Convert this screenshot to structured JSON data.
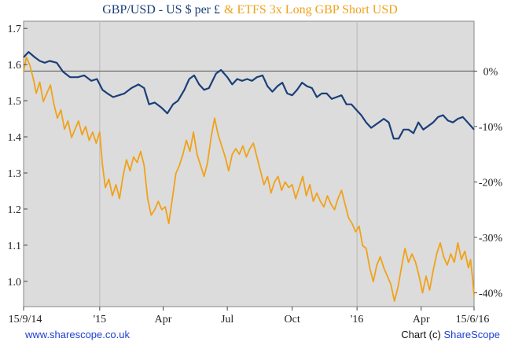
{
  "chart_data": {
    "type": "line",
    "title_parts": [
      "GBP/USD - US $ per £",
      "& ETFS 3x Long GBP Short USD"
    ],
    "title_colors": [
      "#1a3f78",
      "#f0a21a"
    ],
    "background": "#dcdcdc",
    "grid": true,
    "x_ticks": [
      "15/9/14",
      "'15",
      "Apr",
      "Jul",
      "Oct",
      "'16",
      "Apr",
      "15/6/16"
    ],
    "x_range": [
      "2014-09-15",
      "2016-06-15"
    ],
    "x_tick_dates": [
      "2014-09-15",
      "2015-01-01",
      "2015-04-01",
      "2015-07-01",
      "2015-10-01",
      "2016-01-01",
      "2016-04-01",
      "2016-06-15"
    ],
    "vgrid_dates": [
      "2015-01-01",
      "2016-01-01"
    ],
    "left_axis": {
      "ticks": [
        "1.7",
        "1.6",
        "1.5",
        "1.4",
        "1.3",
        "1.2",
        "1.1",
        "1.0"
      ],
      "range": [
        0.93,
        1.72
      ]
    },
    "right_axis": {
      "ticks": [
        "0%",
        "-10%",
        "-20%",
        "-30%",
        "-40%"
      ],
      "range": [
        -42.5,
        9.0
      ]
    },
    "reference_line": 0,
    "series": [
      {
        "name": "GBP/USD - US $ per £",
        "color": "#1a3f78",
        "axis": "left",
        "points": [
          [
            "2014-09-15",
            1.62
          ],
          [
            "2014-09-22",
            1.635
          ],
          [
            "2014-10-01",
            1.62
          ],
          [
            "2014-10-08",
            1.61
          ],
          [
            "2014-10-15",
            1.605
          ],
          [
            "2014-10-22",
            1.61
          ],
          [
            "2014-11-01",
            1.605
          ],
          [
            "2014-11-10",
            1.58
          ],
          [
            "2014-11-20",
            1.565
          ],
          [
            "2014-12-01",
            1.565
          ],
          [
            "2014-12-10",
            1.57
          ],
          [
            "2014-12-20",
            1.555
          ],
          [
            "2014-12-28",
            1.56
          ],
          [
            "2015-01-05",
            1.53
          ],
          [
            "2015-01-12",
            1.52
          ],
          [
            "2015-01-20",
            1.51
          ],
          [
            "2015-01-28",
            1.515
          ],
          [
            "2015-02-05",
            1.52
          ],
          [
            "2015-02-15",
            1.535
          ],
          [
            "2015-02-25",
            1.545
          ],
          [
            "2015-03-05",
            1.535
          ],
          [
            "2015-03-12",
            1.49
          ],
          [
            "2015-03-20",
            1.495
          ],
          [
            "2015-03-30",
            1.48
          ],
          [
            "2015-04-07",
            1.465
          ],
          [
            "2015-04-15",
            1.49
          ],
          [
            "2015-04-22",
            1.5
          ],
          [
            "2015-05-01",
            1.53
          ],
          [
            "2015-05-08",
            1.56
          ],
          [
            "2015-05-15",
            1.57
          ],
          [
            "2015-05-22",
            1.545
          ],
          [
            "2015-05-29",
            1.53
          ],
          [
            "2015-06-05",
            1.535
          ],
          [
            "2015-06-15",
            1.575
          ],
          [
            "2015-06-22",
            1.585
          ],
          [
            "2015-07-01",
            1.565
          ],
          [
            "2015-07-08",
            1.545
          ],
          [
            "2015-07-15",
            1.56
          ],
          [
            "2015-07-22",
            1.555
          ],
          [
            "2015-07-29",
            1.56
          ],
          [
            "2015-08-05",
            1.555
          ],
          [
            "2015-08-12",
            1.565
          ],
          [
            "2015-08-20",
            1.57
          ],
          [
            "2015-08-27",
            1.54
          ],
          [
            "2015-09-03",
            1.525
          ],
          [
            "2015-09-10",
            1.54
          ],
          [
            "2015-09-17",
            1.55
          ],
          [
            "2015-09-24",
            1.52
          ],
          [
            "2015-10-01",
            1.515
          ],
          [
            "2015-10-08",
            1.53
          ],
          [
            "2015-10-15",
            1.55
          ],
          [
            "2015-10-22",
            1.54
          ],
          [
            "2015-10-29",
            1.535
          ],
          [
            "2015-11-05",
            1.51
          ],
          [
            "2015-11-12",
            1.52
          ],
          [
            "2015-11-19",
            1.52
          ],
          [
            "2015-11-26",
            1.505
          ],
          [
            "2015-12-03",
            1.51
          ],
          [
            "2015-12-10",
            1.515
          ],
          [
            "2015-12-17",
            1.49
          ],
          [
            "2015-12-24",
            1.49
          ],
          [
            "2015-12-31",
            1.475
          ],
          [
            "2016-01-07",
            1.46
          ],
          [
            "2016-01-14",
            1.44
          ],
          [
            "2016-01-21",
            1.425
          ],
          [
            "2016-02-01",
            1.44
          ],
          [
            "2016-02-08",
            1.45
          ],
          [
            "2016-02-15",
            1.44
          ],
          [
            "2016-02-22",
            1.395
          ],
          [
            "2016-02-29",
            1.395
          ],
          [
            "2016-03-07",
            1.42
          ],
          [
            "2016-03-14",
            1.42
          ],
          [
            "2016-03-21",
            1.41
          ],
          [
            "2016-03-28",
            1.44
          ],
          [
            "2016-04-04",
            1.42
          ],
          [
            "2016-04-11",
            1.43
          ],
          [
            "2016-04-18",
            1.44
          ],
          [
            "2016-04-25",
            1.455
          ],
          [
            "2016-05-02",
            1.46
          ],
          [
            "2016-05-09",
            1.445
          ],
          [
            "2016-05-16",
            1.44
          ],
          [
            "2016-05-23",
            1.45
          ],
          [
            "2016-05-30",
            1.455
          ],
          [
            "2016-06-06",
            1.44
          ],
          [
            "2016-06-15",
            1.42
          ]
        ]
      },
      {
        "name": "& ETFS 3x Long GBP Short USD",
        "color": "#f0a21a",
        "axis": "right",
        "points": [
          [
            "2014-09-15",
            0.0
          ],
          [
            "2014-09-19",
            2.5
          ],
          [
            "2014-09-24",
            1.0
          ],
          [
            "2014-09-29",
            -1.5
          ],
          [
            "2014-10-03",
            -4.0
          ],
          [
            "2014-10-08",
            -2.0
          ],
          [
            "2014-10-13",
            -5.5
          ],
          [
            "2014-10-18",
            -4.0
          ],
          [
            "2014-10-23",
            -2.5
          ],
          [
            "2014-10-28",
            -6.0
          ],
          [
            "2014-11-02",
            -8.5
          ],
          [
            "2014-11-07",
            -7.0
          ],
          [
            "2014-11-12",
            -10.5
          ],
          [
            "2014-11-17",
            -9.0
          ],
          [
            "2014-11-22",
            -12.0
          ],
          [
            "2014-11-27",
            -10.5
          ],
          [
            "2014-12-02",
            -9.0
          ],
          [
            "2014-12-07",
            -11.5
          ],
          [
            "2014-12-12",
            -10.0
          ],
          [
            "2014-12-17",
            -12.5
          ],
          [
            "2014-12-22",
            -11.0
          ],
          [
            "2014-12-27",
            -13.0
          ],
          [
            "2015-01-01",
            -11.0
          ],
          [
            "2015-01-05",
            -17.0
          ],
          [
            "2015-01-09",
            -21.0
          ],
          [
            "2015-01-14",
            -19.5
          ],
          [
            "2015-01-19",
            -22.5
          ],
          [
            "2015-01-24",
            -20.5
          ],
          [
            "2015-01-29",
            -23.0
          ],
          [
            "2015-02-03",
            -19.0
          ],
          [
            "2015-02-08",
            -16.0
          ],
          [
            "2015-02-13",
            -18.0
          ],
          [
            "2015-02-18",
            -15.5
          ],
          [
            "2015-02-23",
            -16.5
          ],
          [
            "2015-02-28",
            -14.5
          ],
          [
            "2015-03-05",
            -17.0
          ],
          [
            "2015-03-10",
            -23.0
          ],
          [
            "2015-03-15",
            -26.0
          ],
          [
            "2015-03-20",
            -25.0
          ],
          [
            "2015-03-25",
            -23.5
          ],
          [
            "2015-03-30",
            -25.0
          ],
          [
            "2015-04-04",
            -24.5
          ],
          [
            "2015-04-09",
            -27.5
          ],
          [
            "2015-04-14",
            -23.0
          ],
          [
            "2015-04-19",
            -18.5
          ],
          [
            "2015-04-24",
            -17.0
          ],
          [
            "2015-04-29",
            -15.0
          ],
          [
            "2015-05-04",
            -12.5
          ],
          [
            "2015-05-09",
            -14.5
          ],
          [
            "2015-05-14",
            -11.0
          ],
          [
            "2015-05-19",
            -15.0
          ],
          [
            "2015-05-24",
            -17.0
          ],
          [
            "2015-05-29",
            -19.0
          ],
          [
            "2015-06-03",
            -16.5
          ],
          [
            "2015-06-08",
            -12.0
          ],
          [
            "2015-06-13",
            -8.5
          ],
          [
            "2015-06-18",
            -11.5
          ],
          [
            "2015-06-23",
            -13.5
          ],
          [
            "2015-06-28",
            -15.5
          ],
          [
            "2015-07-03",
            -18.0
          ],
          [
            "2015-07-08",
            -15.0
          ],
          [
            "2015-07-13",
            -14.0
          ],
          [
            "2015-07-18",
            -15.0
          ],
          [
            "2015-07-23",
            -13.5
          ],
          [
            "2015-07-28",
            -15.5
          ],
          [
            "2015-08-02",
            -14.0
          ],
          [
            "2015-08-07",
            -13.0
          ],
          [
            "2015-08-12",
            -15.5
          ],
          [
            "2015-08-17",
            -18.0
          ],
          [
            "2015-08-22",
            -20.5
          ],
          [
            "2015-08-27",
            -19.0
          ],
          [
            "2015-09-01",
            -22.0
          ],
          [
            "2015-09-06",
            -20.0
          ],
          [
            "2015-09-11",
            -19.0
          ],
          [
            "2015-09-16",
            -21.5
          ],
          [
            "2015-09-21",
            -20.0
          ],
          [
            "2015-09-26",
            -21.0
          ],
          [
            "2015-10-01",
            -20.5
          ],
          [
            "2015-10-06",
            -23.0
          ],
          [
            "2015-10-11",
            -21.0
          ],
          [
            "2015-10-16",
            -19.0
          ],
          [
            "2015-10-21",
            -22.5
          ],
          [
            "2015-10-26",
            -20.5
          ],
          [
            "2015-10-31",
            -23.5
          ],
          [
            "2015-11-05",
            -22.0
          ],
          [
            "2015-11-10",
            -23.5
          ],
          [
            "2015-11-15",
            -24.5
          ],
          [
            "2015-11-20",
            -22.5
          ],
          [
            "2015-11-25",
            -24.0
          ],
          [
            "2015-11-30",
            -25.0
          ],
          [
            "2015-12-05",
            -23.0
          ],
          [
            "2015-12-10",
            -21.5
          ],
          [
            "2015-12-15",
            -24.0
          ],
          [
            "2015-12-20",
            -26.5
          ],
          [
            "2015-12-25",
            -27.5
          ],
          [
            "2015-12-30",
            -29.0
          ],
          [
            "2016-01-04",
            -28.0
          ],
          [
            "2016-01-09",
            -31.5
          ],
          [
            "2016-01-14",
            -32.0
          ],
          [
            "2016-01-19",
            -35.5
          ],
          [
            "2016-01-24",
            -38.0
          ],
          [
            "2016-01-29",
            -35.0
          ],
          [
            "2016-02-03",
            -33.5
          ],
          [
            "2016-02-08",
            -35.5
          ],
          [
            "2016-02-13",
            -37.0
          ],
          [
            "2016-02-18",
            -38.5
          ],
          [
            "2016-02-23",
            -41.5
          ],
          [
            "2016-02-28",
            -39.0
          ],
          [
            "2016-03-04",
            -35.5
          ],
          [
            "2016-03-09",
            -32.0
          ],
          [
            "2016-03-14",
            -34.5
          ],
          [
            "2016-03-19",
            -33.0
          ],
          [
            "2016-03-24",
            -34.5
          ],
          [
            "2016-03-29",
            -37.0
          ],
          [
            "2016-04-03",
            -40.0
          ],
          [
            "2016-04-08",
            -37.0
          ],
          [
            "2016-04-13",
            -39.5
          ],
          [
            "2016-04-18",
            -36.0
          ],
          [
            "2016-04-23",
            -33.0
          ],
          [
            "2016-04-28",
            -31.0
          ],
          [
            "2016-05-03",
            -33.5
          ],
          [
            "2016-05-08",
            -35.0
          ],
          [
            "2016-05-13",
            -33.0
          ],
          [
            "2016-05-18",
            -34.5
          ],
          [
            "2016-05-23",
            -31.0
          ],
          [
            "2016-05-28",
            -34.0
          ],
          [
            "2016-06-02",
            -32.5
          ],
          [
            "2016-06-07",
            -35.5
          ],
          [
            "2016-06-10",
            -34.0
          ],
          [
            "2016-06-13",
            -37.5
          ],
          [
            "2016-06-15",
            -40.5
          ]
        ]
      }
    ]
  },
  "footer": {
    "left": "www.sharescope.co.uk",
    "right_prefix": "Chart (c) ",
    "right_brand": "ShareScope"
  }
}
